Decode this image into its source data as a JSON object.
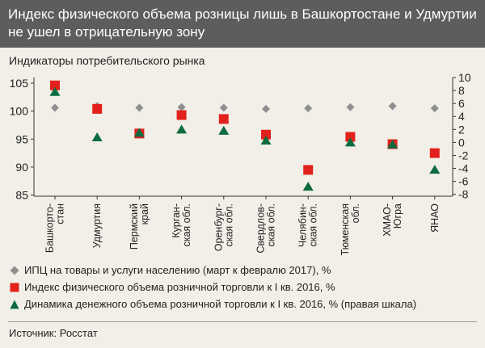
{
  "header": {
    "title": "Индекс физического объема розницы лишь в Башкортостане и Удмуртии не ушел в отрицательную зону"
  },
  "colors": {
    "header_bg": "#5d5d5d",
    "background": "#f1efe7",
    "cpi": "#8f8f8f",
    "retail_index": "#e2211c",
    "money_volume": "#0d6b3f"
  },
  "legend": {
    "items": [
      {
        "marker": "diamond-icon",
        "label": "ИПЦ на товары и услуги населению (март к февралю 2017), %"
      },
      {
        "marker": "square-icon",
        "label": "Индекс физического объема розничной торговли к I кв. 2016, %"
      },
      {
        "marker": "triangle-icon",
        "label": "Динамика денежного объема розничной торговли к I кв. 2016, % (правая шкала)"
      }
    ]
  },
  "footer": {
    "source": "Источник: Росстат"
  },
  "chart_data": {
    "type": "scatter",
    "title": "Индикаторы потребительского рынка",
    "categories": [
      "Башкорто-\nстан",
      "Удмуртия",
      "Пермский\nкрай",
      "Курган-\nская обл.",
      "Оренбург-\nская обл.",
      "Свердлов-\nская обл.",
      "Челябин-\nская обл.",
      "Тюменская\nобл.",
      "ХМАО-\nЮгра",
      "ЯНАО"
    ],
    "left_axis": {
      "ylim": [
        85,
        105
      ],
      "ticks": [
        85,
        90,
        95,
        100,
        105
      ]
    },
    "right_axis": {
      "ylim": [
        -8,
        10
      ],
      "ticks": [
        -8,
        -6,
        -4,
        -2,
        0,
        2,
        4,
        6,
        8,
        10
      ]
    },
    "grid": false,
    "legend_placement": "bottom",
    "series": [
      {
        "name": "ИПЦ на товары и услуги населению (март к февралю 2017), %",
        "axis": "left",
        "marker": "diamond",
        "values": [
          100.6,
          100.9,
          100.6,
          100.7,
          100.6,
          100.4,
          100.5,
          100.7,
          100.9,
          100.5
        ]
      },
      {
        "name": "Индекс физического объема розничной торговли к I кв. 2016, %",
        "axis": "left",
        "marker": "square",
        "values": [
          104.6,
          100.4,
          96.0,
          99.3,
          98.6,
          95.8,
          89.5,
          95.4,
          94.1,
          92.5
        ]
      },
      {
        "name": "Динамика денежного объема розничной торговли к I кв. 2016, % (правая шкала)",
        "axis": "right",
        "marker": "triangle",
        "values": [
          7.8,
          0.8,
          1.5,
          2.0,
          1.8,
          0.3,
          -6.8,
          0.0,
          -0.3,
          -4.2
        ]
      }
    ]
  }
}
